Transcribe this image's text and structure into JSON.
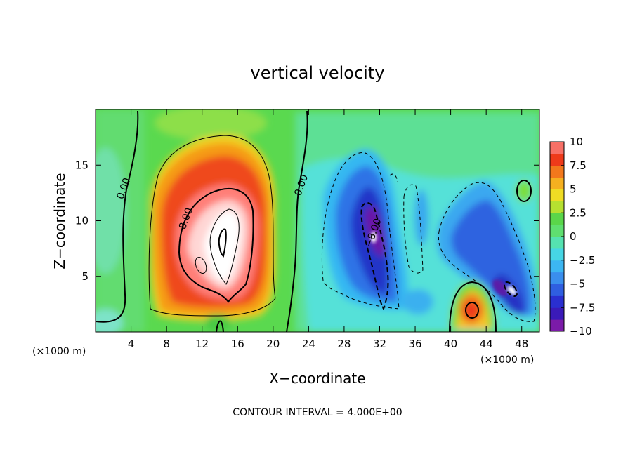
{
  "chart_data": {
    "type": "heatmap",
    "title": "vertical velocity",
    "xlabel": "X−coordinate",
    "ylabel": "Z−coordinate",
    "x_unit_label_left": "(×1000 m)",
    "x_unit_label_right": "(×1000 m)",
    "xlim": [
      0,
      50
    ],
    "ylim": [
      0,
      20
    ],
    "x_ticks": [
      4,
      8,
      12,
      16,
      20,
      24,
      28,
      32,
      36,
      40,
      44,
      48
    ],
    "y_ticks": [
      5,
      10,
      15
    ],
    "colorbar": {
      "range": [
        -10,
        10
      ],
      "ticks": [
        10,
        7.5,
        5,
        2.5,
        0,
        -2.5,
        -5,
        -7.5,
        -10
      ],
      "tick_labels": [
        "10",
        "7.5",
        "5",
        "2.5",
        "0",
        "−2.5",
        "−5",
        "−7.5",
        "−10"
      ]
    },
    "contour_interval_text": "CONTOUR INTERVAL = 4.000E+00",
    "contour_labels": [
      {
        "text": "0.00",
        "x": 3.5,
        "y": 12.8
      },
      {
        "text": "0.00",
        "x": 23.5,
        "y": 13.1
      },
      {
        "text": "8.00",
        "x": 10.5,
        "y": 10.1
      },
      {
        "text": "−8.00",
        "x": 31.6,
        "y": 8.8
      }
    ],
    "features": [
      {
        "kind": "updraft",
        "x": 14.0,
        "z": 8.5,
        "w_max": 12
      },
      {
        "kind": "updraft",
        "x": 42.3,
        "z": 2.0,
        "w_max": 8
      },
      {
        "kind": "downdraft",
        "x": 31.3,
        "z": 8.8,
        "w_min": -11
      },
      {
        "kind": "downdraft",
        "x": 46.6,
        "z": 3.5,
        "w_min": -10
      }
    ]
  }
}
